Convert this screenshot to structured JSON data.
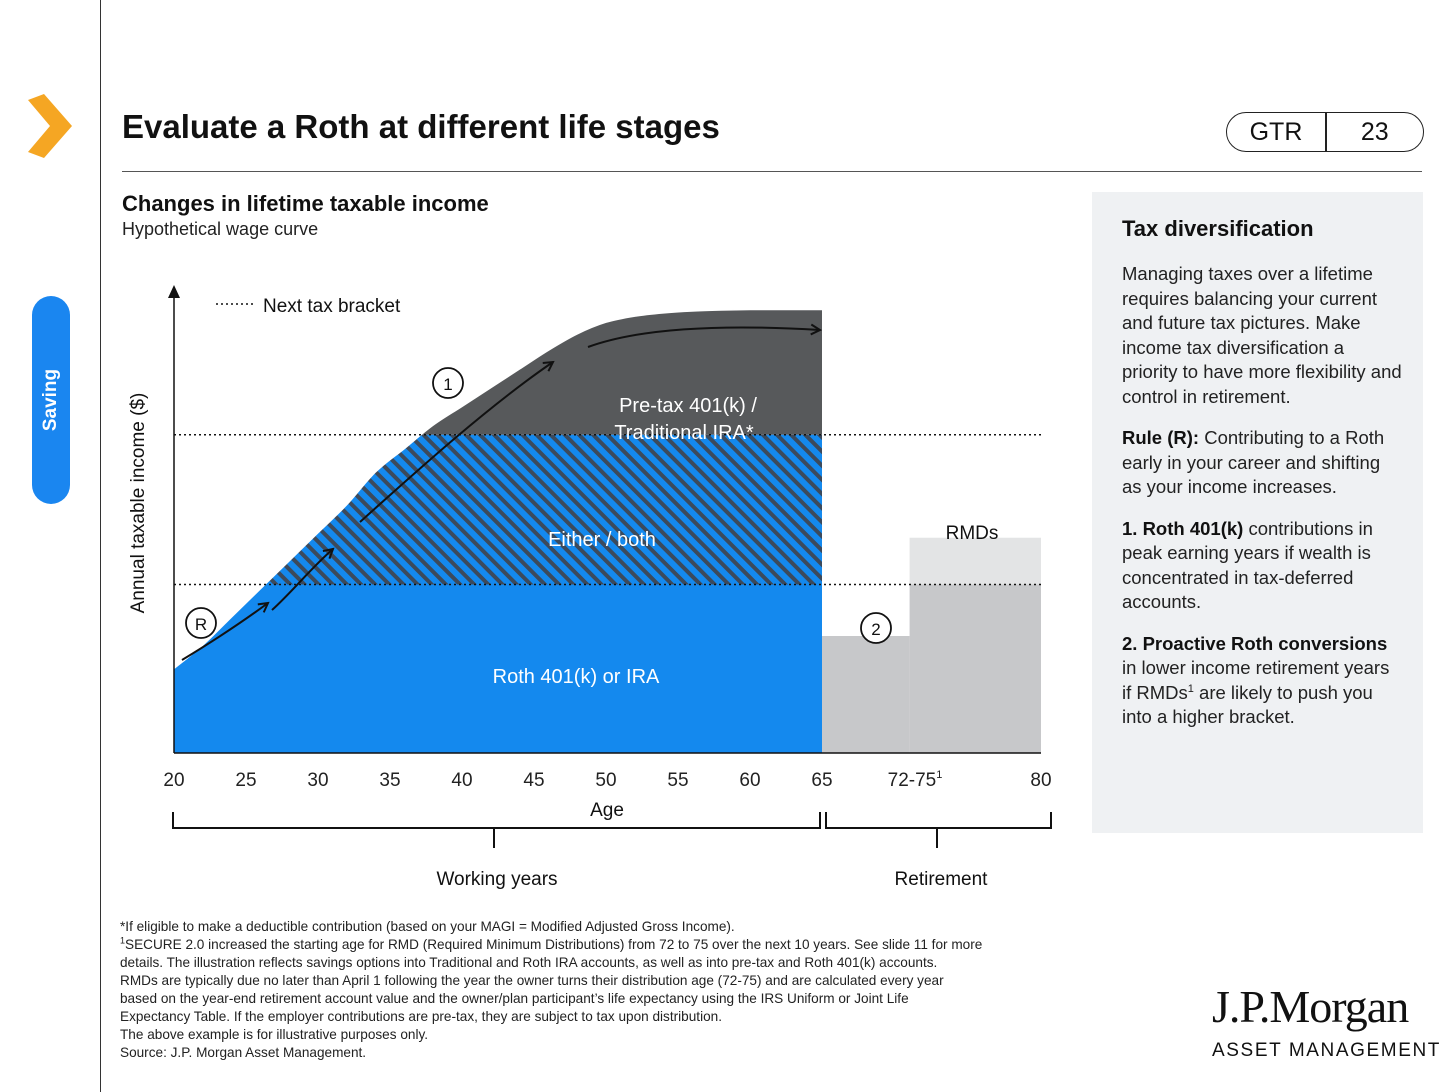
{
  "page": {
    "title": "Evaluate a Roth at different life stages",
    "badge_left": "GTR",
    "badge_right": "23",
    "side_tab": "Saving",
    "accent_color": "#f5a623",
    "tab_color": "#1a86f0"
  },
  "chart": {
    "title": "Changes in lifetime taxable income",
    "subtitle": "Hypothetical wage curve",
    "legend_label": "Next tax bracket",
    "ylabel": "Annual taxable income ($)",
    "xlabel": "Age",
    "region_pretax": "Pre-tax 401(k) /",
    "region_pretax_2": "Traditional IRA*",
    "region_either": "Either / both",
    "region_roth": "Roth 401(k) or IRA",
    "rmds_label": "RMDs",
    "marker_r": "R",
    "marker_1": "1",
    "marker_2": "2",
    "phase_working": "Working years",
    "phase_retirement": "Retirement",
    "tick_72_base": "72-75",
    "tick_72_sup": "1",
    "colors": {
      "roth": "#1489ee",
      "pretax": "#57595b",
      "retirement": "#c7c8ca",
      "rmd": "#e3e4e5"
    }
  },
  "chart_data": {
    "type": "area",
    "title": "Changes in lifetime taxable income",
    "subtitle": "Hypothetical wage curve",
    "xlabel": "Age",
    "ylabel": "Annual taxable income ($)",
    "x_ticks": [
      "20",
      "25",
      "30",
      "35",
      "40",
      "45",
      "50",
      "55",
      "60",
      "65",
      "72-75",
      "80"
    ],
    "ylim": [
      0,
      100
    ],
    "x": [
      20,
      22,
      24,
      26,
      28,
      30,
      32,
      34,
      36,
      38,
      40,
      42,
      44,
      46,
      48,
      50,
      52,
      54,
      56,
      58,
      60,
      62,
      65
    ],
    "income": [
      18,
      23,
      29,
      35,
      41,
      47,
      53,
      60,
      65,
      70,
      74,
      78,
      82,
      86,
      89.5,
      92,
      93.3,
      94,
      94.4,
      94.6,
      94.7,
      94.7,
      94.7
    ],
    "tax_brackets": [
      36,
      68
    ],
    "retirement_income": [
      {
        "from": 65,
        "to": 71,
        "value": 25
      },
      {
        "from": 71,
        "to": 80,
        "value": 36
      }
    ],
    "rmd": {
      "from": 71,
      "to": 80,
      "from_value": 36,
      "to_value": 46
    }
  },
  "panel": {
    "title": "Tax diversification",
    "intro": "Managing taxes over a lifetime requires balancing your current and future tax pictures. Make income tax diversification a priority to have more flexibility and control in retirement.",
    "rule_head": "Rule (R):",
    "rule_text": " Contributing to a Roth early in your career and shifting as your income increases.",
    "item1_head": "1. Roth 401(k)",
    "item1_text": " contributions in peak earning years if wealth is concentrated in tax-deferred accounts.",
    "item2_head": "2. Proactive Roth conversions",
    "item2_text_a": " in lower income retirement years if RMDs",
    "item2_sup": "1",
    "item2_text_b": " are likely to push you into a higher bracket."
  },
  "footnotes": {
    "line1": "*If eligible to make a deductible contribution (based on your MAGI = Modified Adjusted Gross Income).",
    "line2_sup": "1",
    "line2": "SECURE 2.0 increased the starting age for RMD (Required Minimum Distributions) from 72 to 75 over the next 10 years. See slide 11 for more",
    "line3": "details. The illustration reflects savings options into Traditional and Roth IRA accounts, as well as into pre-tax and Roth 401(k) accounts.",
    "line4": "RMDs are typically due no later than April 1 following the year the owner turns their distribution age (72-75) and are calculated every year",
    "line5": "based on the year-end retirement account value and the owner/plan participant’s life expectancy using the IRS Uniform or Joint Life",
    "line6": "Expectancy Table. If the employer contributions are pre-tax, they are subject to tax upon distribution.",
    "line7": "The above example is for illustrative purposes only.",
    "line8": "Source: J.P. Morgan Asset Management."
  },
  "logo": {
    "name": "J.P.Morgan",
    "sub": "ASSET MANAGEMENT"
  }
}
